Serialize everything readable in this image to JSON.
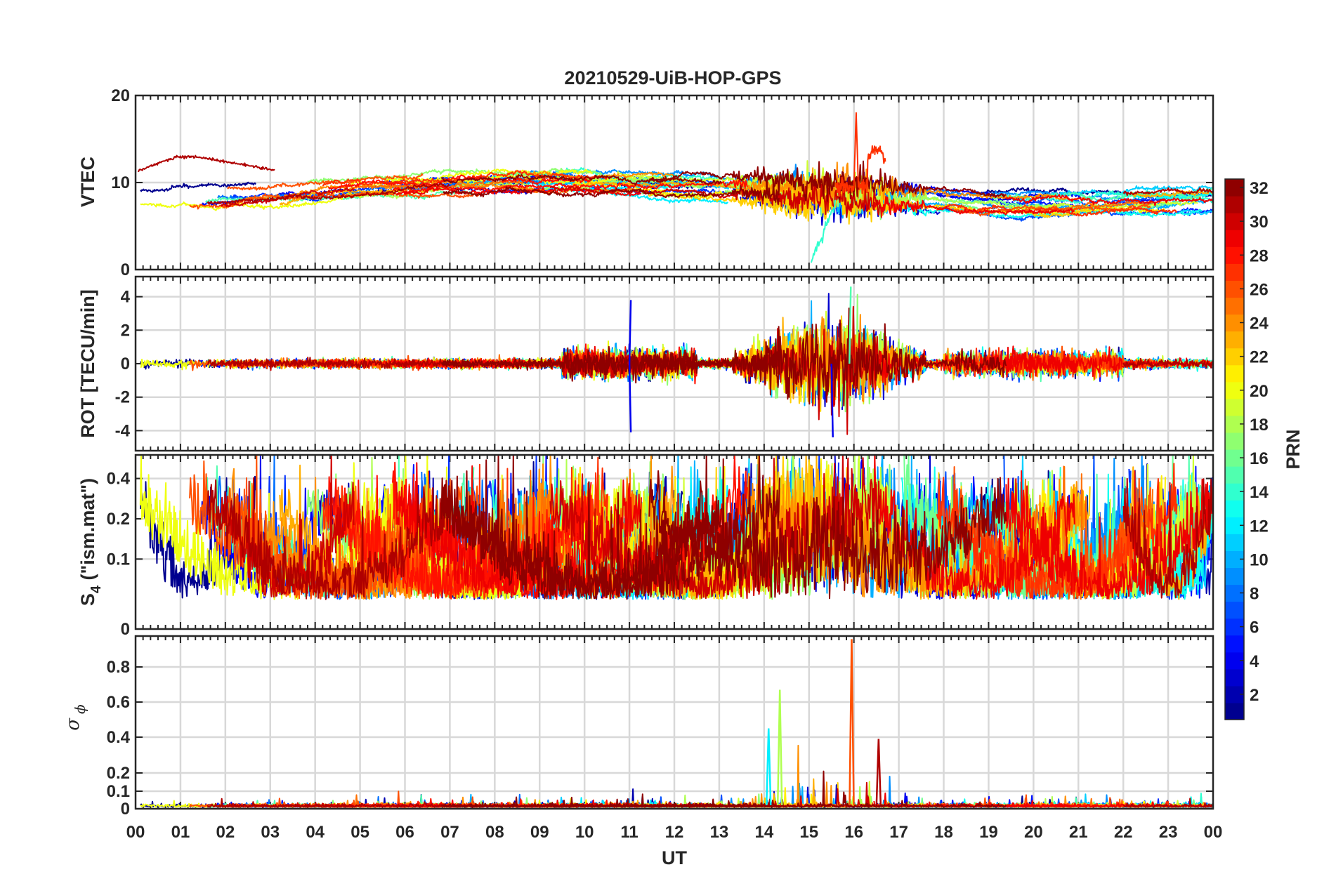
{
  "chart_data": {
    "type": "line",
    "title": "20210529-UiB-HOP-GPS",
    "xlabel": "UT",
    "x_tick_labels": [
      "00",
      "01",
      "02",
      "03",
      "04",
      "05",
      "06",
      "07",
      "08",
      "09",
      "10",
      "11",
      "12",
      "13",
      "14",
      "15",
      "16",
      "17",
      "18",
      "19",
      "20",
      "21",
      "22",
      "23",
      "00"
    ],
    "xlim_hours": [
      0,
      24
    ],
    "panels": [
      {
        "name": "vtec",
        "ylabel": "VTEC",
        "ylim": [
          0,
          20
        ],
        "yticks": [
          0,
          10,
          20
        ],
        "tick_labels": [
          "0",
          "10",
          "20"
        ],
        "description_series": "VTEC per satellite PRN, mostly 7-11 TECU with a spike near 18 at 16 UT"
      },
      {
        "name": "rot",
        "ylabel": "ROT [TECU/min]",
        "ylim": [
          -5.2,
          5.2
        ],
        "yticks": [
          -4,
          -2,
          0,
          2,
          4
        ],
        "tick_labels": [
          "-4",
          "-2",
          "0",
          "2",
          "4"
        ]
      },
      {
        "name": "s4",
        "ylabel_main": "S",
        "ylabel_sub": "4",
        "ylabel_rest": " (\"ism.mat\")",
        "scale": "log",
        "yticks": [
          0,
          0.1,
          0.2,
          0.4
        ],
        "tick_labels": [
          "0",
          "0.1",
          "0.2",
          "0.4"
        ]
      },
      {
        "name": "sigma_phi",
        "ylabel_main": "σ",
        "ylabel_sub": "ϕ",
        "scale": "pseudo-log",
        "yticks": [
          0,
          0.1,
          0.2,
          0.4,
          0.6,
          0.8
        ],
        "tick_labels": [
          "0",
          "0.1",
          "0.2",
          "0.4",
          "0.6",
          "0.8"
        ]
      }
    ],
    "colorbar": {
      "label": "PRN",
      "colormap": "jet",
      "range": [
        1,
        32
      ],
      "tick_labels": [
        "2",
        "4",
        "6",
        "8",
        "10",
        "12",
        "14",
        "16",
        "18",
        "20",
        "22",
        "24",
        "26",
        "28",
        "30",
        "32"
      ]
    },
    "series_note": "one line per GPS satellite PRN 1-32, colored by PRN; values approximated from figure",
    "features": {
      "vtec_spike": {
        "t": 16.05,
        "value": 18
      },
      "vtec_drop": {
        "t": 15.1,
        "value": 1
      },
      "rot_spikes": [
        {
          "t": 11.0,
          "value": 3.8
        },
        {
          "t": 11.0,
          "value": -4.1
        },
        {
          "t": 15.5,
          "value": -4.4
        },
        {
          "t": 15.9,
          "value": 4.6
        }
      ],
      "sigma_phi_spikes": [
        {
          "t": 15.95,
          "value": 0.98
        },
        {
          "t": 14.35,
          "value": 0.67
        },
        {
          "t": 14.1,
          "value": 0.45
        },
        {
          "t": 16.55,
          "value": 0.39
        }
      ]
    }
  }
}
